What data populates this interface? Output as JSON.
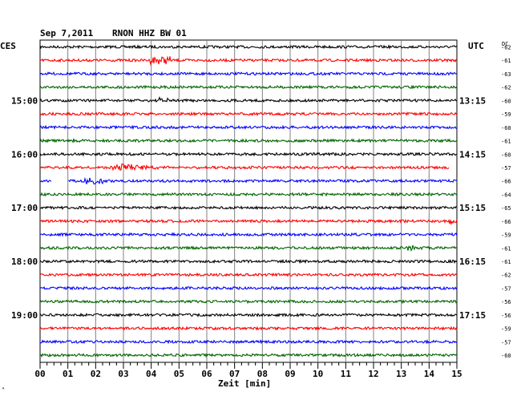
{
  "header": {
    "date": "Sep 7,2011",
    "station": "RNON HHZ BW 01",
    "left_tz": "CES",
    "right_tz": "UTC",
    "dc_label": "DC"
  },
  "x_axis": {
    "title": "Zeit [min]"
  },
  "footer": {
    "mark": "ᴬ"
  },
  "chart_data": {
    "type": "line",
    "title": "Sep 7,2011   RNON HHZ BW 01",
    "xlabel": "Zeit [min]",
    "ylabel": "",
    "xlim": [
      0,
      15
    ],
    "x_ticks": [
      "00",
      "01",
      "02",
      "03",
      "04",
      "05",
      "06",
      "07",
      "08",
      "09",
      "10",
      "11",
      "12",
      "13",
      "14",
      "15"
    ],
    "left_hour_labels": [
      "15:00",
      "16:00",
      "17:00",
      "18:00",
      "19:00"
    ],
    "right_hour_labels": [
      "13:15",
      "14:15",
      "15:15",
      "16:15",
      "17:15"
    ],
    "trace_colors": [
      "#000000",
      "#ff0000",
      "#0000ff",
      "#006400"
    ],
    "dc_offsets": [
      -62,
      -61,
      -63,
      -62,
      -60,
      -59,
      -60,
      -61,
      -60,
      -57,
      -66,
      -64,
      -65,
      -66,
      -59,
      -61,
      -61,
      -62,
      -57,
      -56,
      -56,
      -59,
      -57,
      -60
    ],
    "grid": true
  }
}
